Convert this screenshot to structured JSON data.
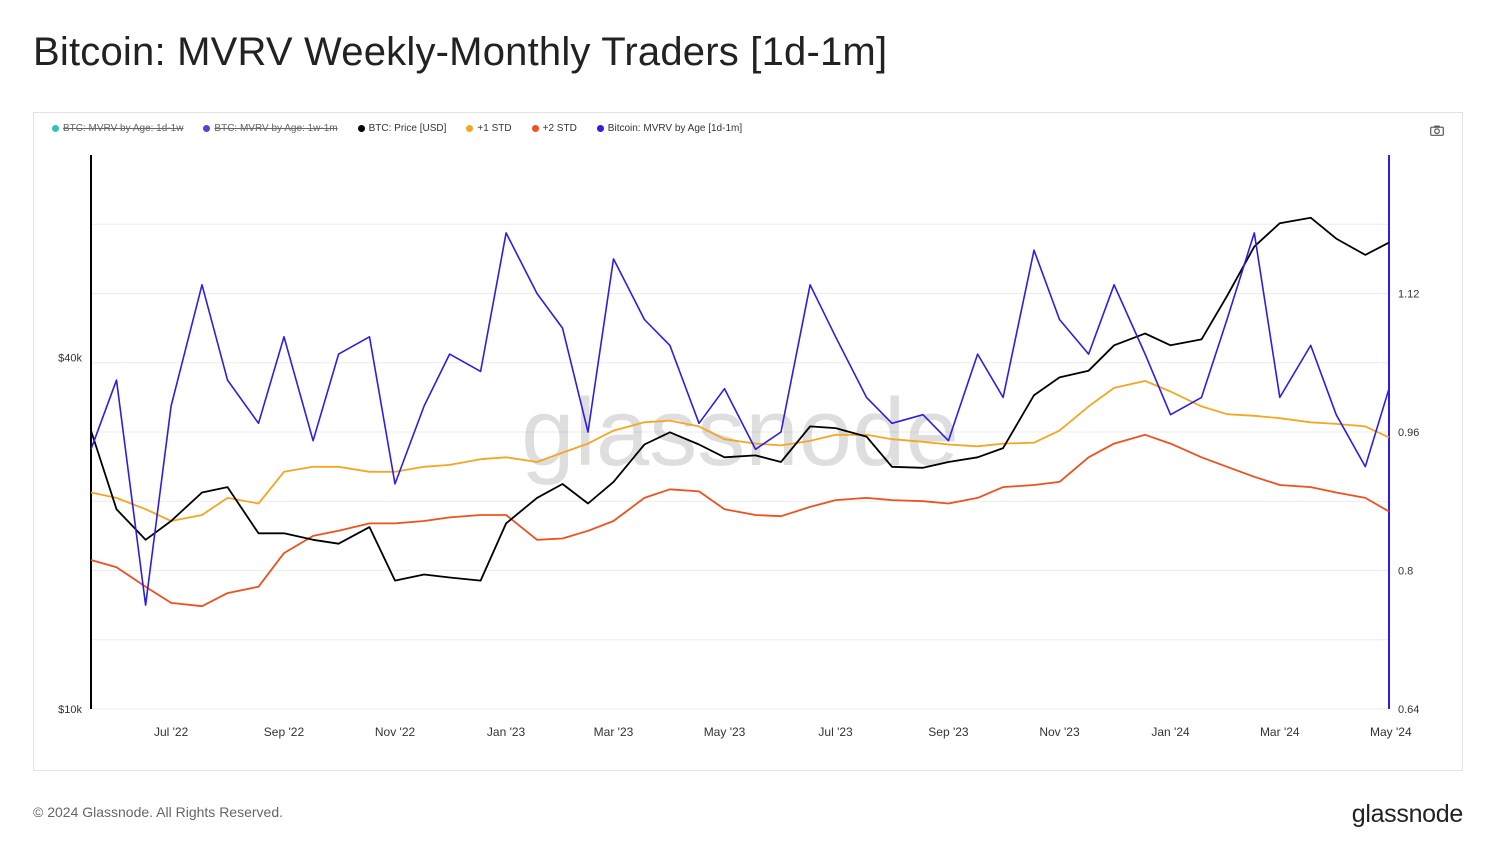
{
  "title": "Bitcoin: MVRV Weekly-Monthly Traders [1d-1m]",
  "footer": {
    "copyright": "© 2024 Glassnode. All Rights Reserved.",
    "brand": "glassnode"
  },
  "watermark": "glassnode",
  "legend": [
    {
      "label": "BTC: MVRV by Age: 1d-1w",
      "color": "#2ec4b6",
      "active": false
    },
    {
      "label": "BTC: MVRV by Age: 1w-1m",
      "color": "#5b3fd6",
      "active": false
    },
    {
      "label": "BTC: Price [USD]",
      "color": "#000000",
      "active": true
    },
    {
      "label": "+1 STD",
      "color": "#f5a623",
      "active": true
    },
    {
      "label": "+2 STD",
      "color": "#f0501e",
      "active": true
    },
    {
      "label": "Bitcoin: MVRV by Age [1d-1m]",
      "color": "#2b1ee6",
      "active": true
    }
  ],
  "chart_data": {
    "type": "line",
    "title": "Bitcoin: MVRV Weekly-Monthly Traders [1d-1m]",
    "x_range": [
      "2022-06-01",
      "2024-05-14"
    ],
    "x_ticks": [
      "Jul '22",
      "Sep '22",
      "Nov '22",
      "Jan '23",
      "Mar '23",
      "May '23",
      "Jul '23",
      "Sep '23",
      "Nov '23",
      "Jan '24",
      "Mar '24",
      "May '24"
    ],
    "y_left": {
      "scale": "log",
      "ticks": [
        "$10k",
        "$40k"
      ],
      "tick_values": [
        10000,
        40000
      ],
      "ylim": [
        10000,
        89000
      ]
    },
    "y_right": {
      "scale": "linear",
      "ticks": [
        "0.64",
        "0.8",
        "0.96",
        "1.12"
      ],
      "tick_values": [
        0.64,
        0.8,
        0.96,
        1.12
      ],
      "ylim": [
        0.64,
        1.28
      ]
    },
    "grid": true,
    "legend_position": "top-left",
    "x": [
      "2022-06-01",
      "2022-06-15",
      "2022-07-01",
      "2022-07-15",
      "2022-08-01",
      "2022-08-15",
      "2022-09-01",
      "2022-09-15",
      "2022-10-01",
      "2022-10-15",
      "2022-11-01",
      "2022-11-15",
      "2022-12-01",
      "2022-12-15",
      "2023-01-01",
      "2023-01-15",
      "2023-02-01",
      "2023-02-15",
      "2023-03-01",
      "2023-03-15",
      "2023-04-01",
      "2023-04-15",
      "2023-05-01",
      "2023-05-15",
      "2023-06-01",
      "2023-06-15",
      "2023-07-01",
      "2023-07-15",
      "2023-08-01",
      "2023-08-15",
      "2023-09-01",
      "2023-09-15",
      "2023-10-01",
      "2023-10-15",
      "2023-11-01",
      "2023-11-15",
      "2023-12-01",
      "2023-12-15",
      "2024-01-01",
      "2024-01-15",
      "2024-02-01",
      "2024-02-15",
      "2024-03-01",
      "2024-03-15",
      "2024-04-01",
      "2024-04-15",
      "2024-05-01",
      "2024-05-14"
    ],
    "series": [
      {
        "name": "BTC: Price [USD]",
        "axis": "left",
        "color": "#000000",
        "values": [
          30000,
          22000,
          19500,
          21000,
          23500,
          24000,
          20000,
          20000,
          19500,
          19200,
          20500,
          16600,
          17000,
          16800,
          16600,
          20800,
          23000,
          24300,
          22500,
          24500,
          28400,
          29800,
          28400,
          27000,
          27200,
          26500,
          30500,
          30300,
          29300,
          26000,
          25900,
          26500,
          27000,
          28000,
          34500,
          37000,
          38000,
          42000,
          44000,
          42000,
          43000,
          51000,
          62000,
          68000,
          69500,
          64000,
          60000,
          63000
        ]
      },
      {
        "name": "+1 STD",
        "axis": "left",
        "color": "#f5a623",
        "values": [
          23500,
          23000,
          22000,
          21000,
          21500,
          23000,
          22500,
          25500,
          26000,
          26000,
          25500,
          25500,
          26000,
          26200,
          26800,
          27000,
          26500,
          27500,
          28500,
          30000,
          31000,
          31200,
          30500,
          29000,
          28500,
          28300,
          28800,
          29500,
          29500,
          29000,
          28700,
          28400,
          28200,
          28500,
          28600,
          30000,
          33000,
          35500,
          36500,
          35000,
          33000,
          32000,
          31800,
          31500,
          31000,
          30800,
          30500,
          29200
        ]
      },
      {
        "name": "+2 STD",
        "axis": "left",
        "color": "#f0501e",
        "values": [
          18000,
          17500,
          16200,
          15200,
          15000,
          15800,
          16200,
          18500,
          19800,
          20200,
          20800,
          20800,
          21000,
          21300,
          21500,
          21500,
          19500,
          19600,
          20200,
          21000,
          23000,
          23800,
          23600,
          22000,
          21500,
          21400,
          22200,
          22800,
          23000,
          22800,
          22700,
          22500,
          23000,
          24000,
          24200,
          24500,
          27000,
          28500,
          29500,
          28500,
          27000,
          26000,
          25000,
          24200,
          24000,
          23500,
          23000,
          21800
        ]
      },
      {
        "name": "Bitcoin: MVRV by Age [1d-1m]",
        "axis": "right",
        "color": "#2b1ee6",
        "values": [
          0.94,
          1.02,
          0.76,
          0.99,
          1.13,
          1.02,
          0.97,
          1.07,
          0.95,
          1.05,
          1.07,
          0.9,
          0.99,
          1.05,
          1.03,
          1.19,
          1.12,
          1.08,
          0.96,
          1.16,
          1.09,
          1.06,
          0.97,
          1.01,
          0.94,
          0.96,
          1.13,
          1.07,
          1.0,
          0.97,
          0.98,
          0.95,
          1.05,
          1.0,
          1.17,
          1.09,
          1.05,
          1.13,
          1.05,
          0.98,
          1.0,
          1.09,
          1.19,
          1.0,
          1.06,
          0.98,
          0.92,
          1.01
        ]
      }
    ]
  }
}
